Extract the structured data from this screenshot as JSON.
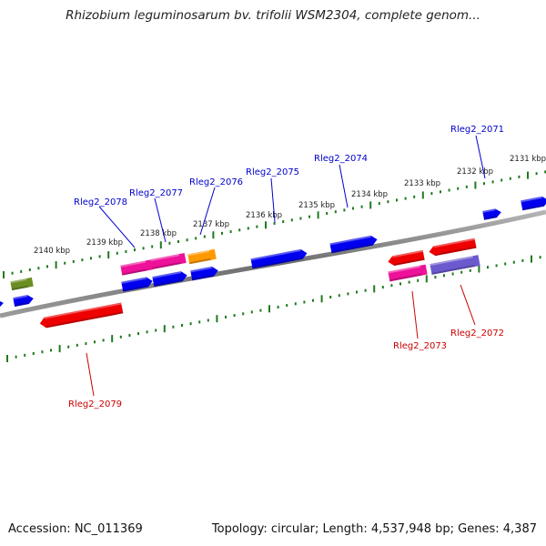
{
  "title": "Rhizobium leguminosarum bv. trifolii WSM2304, complete genom...",
  "footer": {
    "accession": "Accession: NC_011369",
    "summary": "Topology: circular; Length: 4,537,948 bp; Genes: 4,387"
  },
  "colors": {
    "backbone": "#7d7d7d",
    "tick": "#1f7a1f",
    "plus_label": "#0000cc",
    "minus_label": "#cc0000",
    "blue": "#0000ee",
    "red": "#ee0000",
    "magenta": "#ee1199",
    "orange": "#ff9900",
    "olive": "#6b8e23",
    "purple": "#6a5acd"
  },
  "kbp_labels": [
    "2140 kbp",
    "2139 kbp",
    "2138 kbp",
    "2137 kbp",
    "2136 kbp",
    "2135 kbp",
    "2134 kbp",
    "2133 kbp",
    "2132 kbp",
    "2131 kbp"
  ],
  "gene_labels": [
    {
      "text": "Rleg2_2078",
      "strand": "plus"
    },
    {
      "text": "Rleg2_2077",
      "strand": "plus"
    },
    {
      "text": "Rleg2_2076",
      "strand": "plus"
    },
    {
      "text": "Rleg2_2075",
      "strand": "plus"
    },
    {
      "text": "Rleg2_2074",
      "strand": "plus"
    },
    {
      "text": "Rleg2_2071",
      "strand": "plus"
    },
    {
      "text": "Rleg2_2073",
      "strand": "minus"
    },
    {
      "text": "Rleg2_2072",
      "strand": "minus"
    },
    {
      "text": "Rleg2_2079",
      "strand": "minus"
    }
  ]
}
